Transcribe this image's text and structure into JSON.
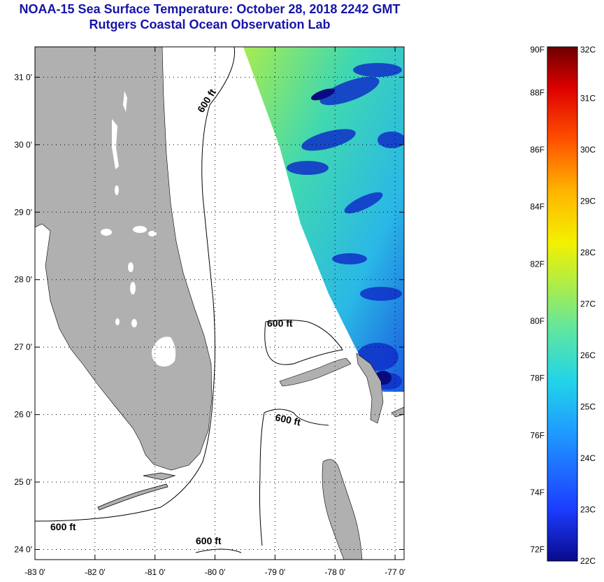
{
  "title": "NOAA-15 Sea Surface Temperature:  October 28, 2018 2242 GMT",
  "subtitle": "Rutgers Coastal Ocean Observation Lab",
  "map": {
    "lat_ticks": [
      {
        "value": 31,
        "label": "31 0'"
      },
      {
        "value": 30,
        "label": "30 0'"
      },
      {
        "value": 29,
        "label": "29 0'"
      },
      {
        "value": 28,
        "label": "28 0'"
      },
      {
        "value": 27,
        "label": "27 0'"
      },
      {
        "value": 26,
        "label": "26 0'"
      },
      {
        "value": 25,
        "label": "25 0'"
      },
      {
        "value": 24,
        "label": "24 0'"
      }
    ],
    "lon_ticks": [
      {
        "value": -83,
        "label": "-83 0'"
      },
      {
        "value": -82,
        "label": "-82 0'"
      },
      {
        "value": -81,
        "label": "-81 0'"
      },
      {
        "value": -80,
        "label": "-80 0'"
      },
      {
        "value": -79,
        "label": "-79 0'"
      },
      {
        "value": -78,
        "label": "-78 0'"
      },
      {
        "value": -77,
        "label": "-77 0'"
      }
    ],
    "lat_range": [
      23.85,
      31.45
    ],
    "lon_range": [
      -83.0,
      -76.85
    ],
    "land_color": "#b0b0b0",
    "ocean_color": "#ffffff",
    "contour_labels": [
      "600 ft",
      "600 ft",
      "600 ft",
      "600 ft",
      "600 ft"
    ]
  },
  "colorbar": {
    "f_labels": [
      "90F",
      "88F",
      "86F",
      "84F",
      "82F",
      "80F",
      "78F",
      "76F",
      "74F",
      "72F"
    ],
    "c_labels": [
      "32C",
      "31C",
      "30C",
      "29C",
      "28C",
      "27C",
      "26C",
      "25C",
      "24C",
      "23C",
      "22C"
    ],
    "range_c": [
      22,
      32
    ]
  }
}
